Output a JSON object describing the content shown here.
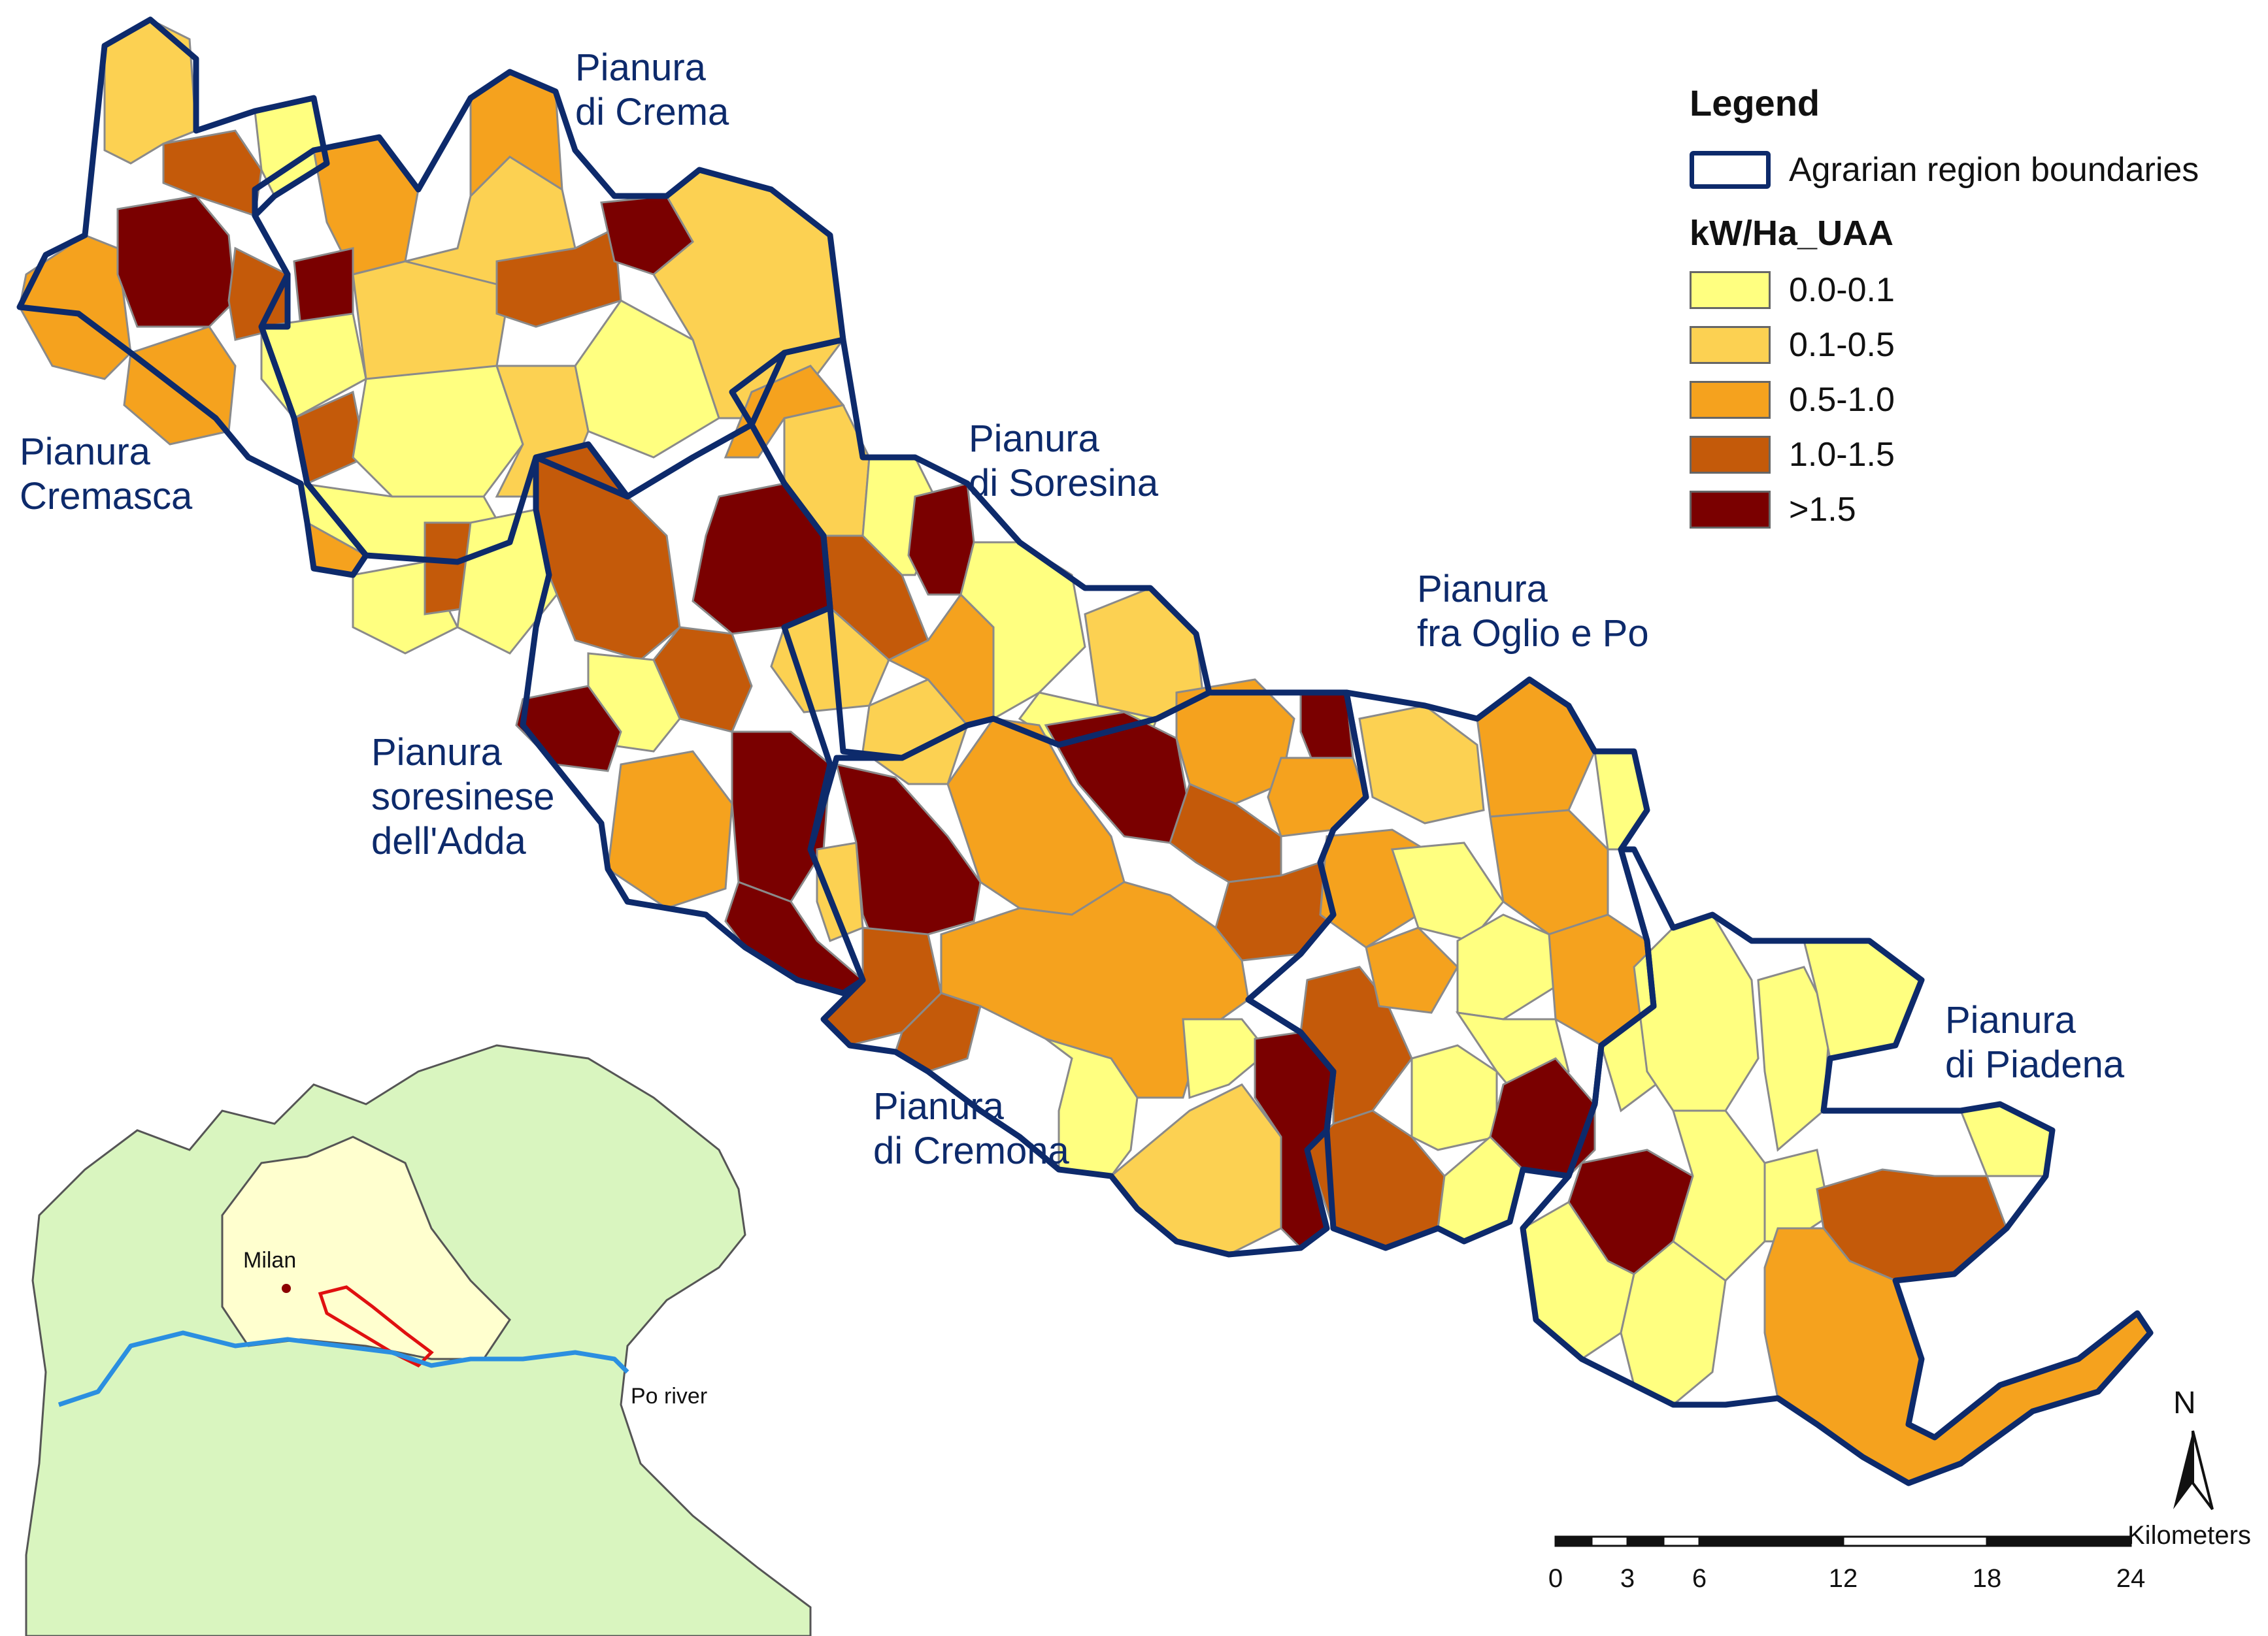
{
  "legend": {
    "title": "Legend",
    "boundary_label": "Agrarian region boundaries",
    "classes_title": "kW/Ha_UAA",
    "classes": [
      {
        "label": "0.0-0.1",
        "color": "#ffff80"
      },
      {
        "label": "0.1-0.5",
        "color": "#fcd152"
      },
      {
        "label": "0.5-1.0",
        "color": "#f5a21e"
      },
      {
        "label": "1.0-1.5",
        "color": "#c45a0a"
      },
      {
        "label": ">1.5",
        "color": "#7a0000"
      }
    ],
    "boundary_color": "#0d2a6b"
  },
  "regions": [
    {
      "id": "cremasca",
      "label": "Pianura\nCremasca"
    },
    {
      "id": "crema",
      "label": "Pianura\ndi Crema"
    },
    {
      "id": "soresina",
      "label": "Pianura\ndi Soresina"
    },
    {
      "id": "soresinese",
      "label": "Pianura\nsoresinese\ndell'Adda"
    },
    {
      "id": "oglio_po",
      "label": "Pianura\nfra Oglio e Po"
    },
    {
      "id": "cremona",
      "label": "Pianura\ndi Cremona"
    },
    {
      "id": "piadena",
      "label": "Pianura\ndi Piadena"
    }
  ],
  "inset": {
    "city_label": "Milan",
    "river_label": "Po river",
    "colors": {
      "land": "#d9f5bf",
      "lombardy": "#ffffcf",
      "river": "#2b8fe0",
      "study_area": "#e01010",
      "city": "#8b0000"
    }
  },
  "north_arrow": {
    "label": "N"
  },
  "scale_bar": {
    "unit": "Kilometers",
    "ticks": [
      "0",
      "3",
      "6",
      "12",
      "18",
      "24"
    ]
  }
}
